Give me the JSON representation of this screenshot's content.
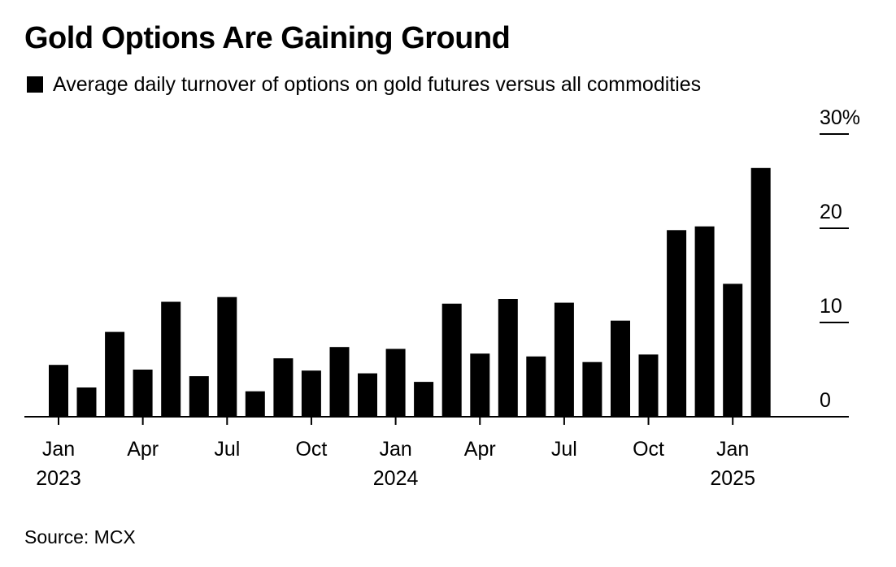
{
  "title": "Gold Options Are Gaining Ground",
  "legend": {
    "label": "Average daily turnover of options on gold futures versus all commodities",
    "color": "#000000"
  },
  "source": "Source: MCX",
  "chart_data": {
    "type": "bar",
    "series": [
      {
        "name": "Average daily turnover of options on gold futures versus all commodities",
        "color": "#000000",
        "values": [
          5.5,
          3.1,
          9.0,
          5.0,
          12.2,
          4.3,
          12.7,
          2.7,
          6.2,
          4.9,
          7.4,
          4.6,
          7.2,
          3.7,
          12.0,
          6.7,
          12.5,
          6.4,
          12.1,
          5.8,
          10.2,
          6.6,
          19.8,
          20.2,
          14.1,
          26.4
        ]
      }
    ],
    "categories": [
      "Jan 2023",
      "Feb 2023",
      "Mar 2023",
      "Apr 2023",
      "May 2023",
      "Jun 2023",
      "Jul 2023",
      "Aug 2023",
      "Sep 2023",
      "Oct 2023",
      "Nov 2023",
      "Dec 2023",
      "Jan 2024",
      "Feb 2024",
      "Mar 2024",
      "Apr 2024",
      "May 2024",
      "Jun 2024",
      "Jul 2024",
      "Aug 2024",
      "Sep 2024",
      "Oct 2024",
      "Nov 2024",
      "Dec 2024",
      "Jan 2025",
      "Feb 2025"
    ],
    "x_ticks": [
      {
        "index": 0,
        "label": "Jan",
        "year": "2023"
      },
      {
        "index": 3,
        "label": "Apr",
        "year": ""
      },
      {
        "index": 6,
        "label": "Jul",
        "year": ""
      },
      {
        "index": 9,
        "label": "Oct",
        "year": ""
      },
      {
        "index": 12,
        "label": "Jan",
        "year": "2024"
      },
      {
        "index": 15,
        "label": "Apr",
        "year": ""
      },
      {
        "index": 18,
        "label": "Jul",
        "year": ""
      },
      {
        "index": 21,
        "label": "Oct",
        "year": ""
      },
      {
        "index": 24,
        "label": "Jan",
        "year": "2025"
      }
    ],
    "y_ticks": [
      {
        "value": 0,
        "label": "0"
      },
      {
        "value": 10,
        "label": "10"
      },
      {
        "value": 20,
        "label": "20"
      },
      {
        "value": 30,
        "label": "30%"
      }
    ],
    "ylim": [
      0,
      30
    ],
    "y_axis_position": "right",
    "grid": false
  }
}
